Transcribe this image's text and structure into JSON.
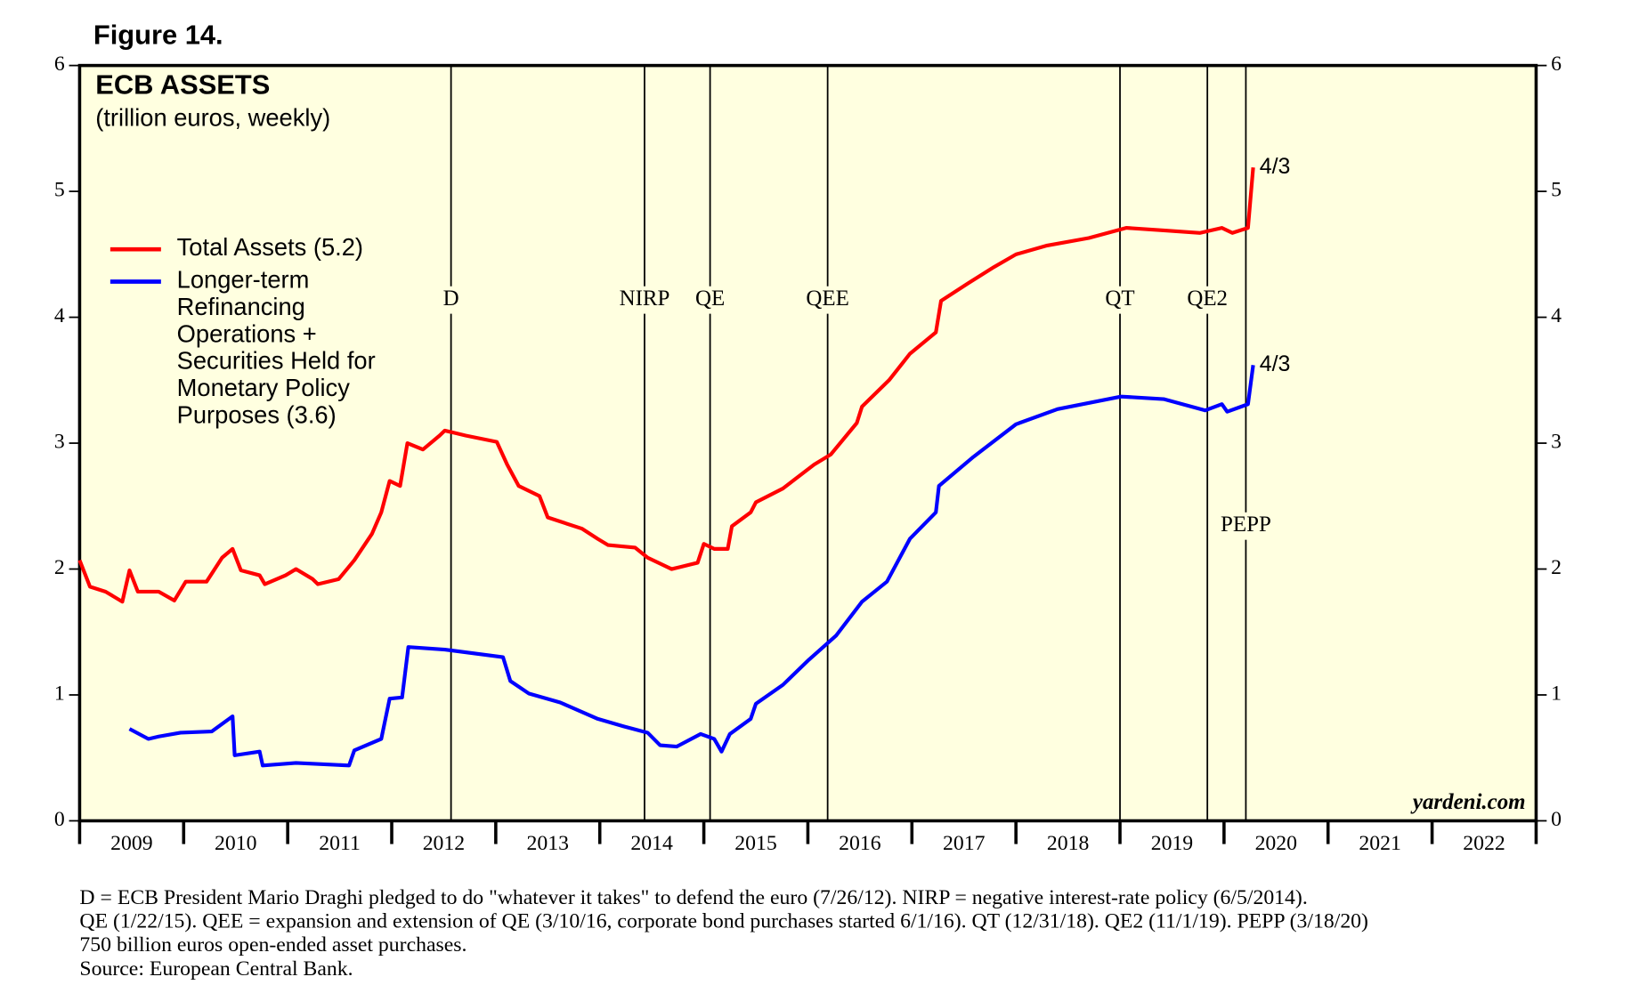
{
  "chart_data": {
    "type": "line",
    "figure": "Figure 14.",
    "title": "ECB ASSETS",
    "subtitle": "(trillion euros, weekly)",
    "watermark": "yardeni.com",
    "xlim": [
      2009,
      2023
    ],
    "x_boundaries": [
      2009,
      2010,
      2011,
      2012,
      2013,
      2014,
      2015,
      2016,
      2017,
      2018,
      2019,
      2020,
      2021,
      2022,
      2023
    ],
    "xticks": [
      {
        "value": 2009.5,
        "label": "2009"
      },
      {
        "value": 2010.5,
        "label": "2010"
      },
      {
        "value": 2011.5,
        "label": "2011"
      },
      {
        "value": 2012.5,
        "label": "2012"
      },
      {
        "value": 2013.5,
        "label": "2013"
      },
      {
        "value": 2014.5,
        "label": "2014"
      },
      {
        "value": 2015.5,
        "label": "2015"
      },
      {
        "value": 2016.5,
        "label": "2016"
      },
      {
        "value": 2017.5,
        "label": "2017"
      },
      {
        "value": 2018.5,
        "label": "2018"
      },
      {
        "value": 2019.5,
        "label": "2019"
      },
      {
        "value": 2020.5,
        "label": "2020"
      },
      {
        "value": 2021.5,
        "label": "2021"
      },
      {
        "value": 2022.5,
        "label": "2022"
      }
    ],
    "ylim": [
      0,
      6
    ],
    "yticks": [
      0,
      1,
      2,
      3,
      4,
      5,
      6
    ],
    "y2lim": [
      0,
      6
    ],
    "y2ticks": [
      0,
      1,
      2,
      3,
      4,
      5,
      6
    ],
    "background": "#ffffe0",
    "events": [
      {
        "label": "D",
        "x": 2012.57
      },
      {
        "label": "NIRP",
        "x": 2014.43
      },
      {
        "label": "QE",
        "x": 2015.06
      },
      {
        "label": "QEE",
        "x": 2016.19
      },
      {
        "label": "QT",
        "x": 2019.0
      },
      {
        "label": "QE2",
        "x": 2019.84
      },
      {
        "label": "PEPP",
        "x": 2020.21,
        "low": true
      }
    ],
    "series": [
      {
        "name": "Total Assets (5.2)",
        "color": "#ff0000",
        "end_label": "4/3",
        "x": [
          2009.0,
          2009.1,
          2009.25,
          2009.41,
          2009.48,
          2009.56,
          2009.76,
          2009.91,
          2010.02,
          2010.22,
          2010.37,
          2010.47,
          2010.55,
          2010.73,
          2010.78,
          2010.98,
          2011.08,
          2011.24,
          2011.29,
          2011.49,
          2011.64,
          2011.81,
          2011.9,
          2011.98,
          2012.08,
          2012.15,
          2012.3,
          2012.46,
          2012.51,
          2012.71,
          2013.01,
          2013.11,
          2013.22,
          2013.42,
          2013.5,
          2013.83,
          2013.98,
          2014.08,
          2014.34,
          2014.46,
          2014.69,
          2014.94,
          2015.0,
          2015.1,
          2015.23,
          2015.27,
          2015.45,
          2015.5,
          2015.76,
          2016.06,
          2016.22,
          2016.47,
          2016.52,
          2016.78,
          2016.98,
          2017.23,
          2017.28,
          2017.54,
          2017.79,
          2018.0,
          2018.3,
          2018.7,
          2019.06,
          2019.42,
          2019.77,
          2019.98,
          2020.08,
          2020.23,
          2020.28
        ],
        "values": [
          2.07,
          1.86,
          1.82,
          1.74,
          1.99,
          1.82,
          1.82,
          1.75,
          1.9,
          1.9,
          2.09,
          2.16,
          1.99,
          1.95,
          1.88,
          1.95,
          2.0,
          1.92,
          1.88,
          1.92,
          2.07,
          2.28,
          2.45,
          2.7,
          2.66,
          3.0,
          2.95,
          3.06,
          3.1,
          3.06,
          3.01,
          2.83,
          2.66,
          2.58,
          2.41,
          2.32,
          2.24,
          2.19,
          2.17,
          2.09,
          2.0,
          2.05,
          2.2,
          2.16,
          2.16,
          2.34,
          2.45,
          2.53,
          2.64,
          2.83,
          2.91,
          3.16,
          3.29,
          3.5,
          3.71,
          3.88,
          4.13,
          4.27,
          4.4,
          4.5,
          4.57,
          4.63,
          4.71,
          4.69,
          4.67,
          4.71,
          4.67,
          4.71,
          5.19
        ]
      },
      {
        "name": "Longer-term Refinancing Operations + Securities Held for Monetary Policy Purposes (3.6)",
        "color": "#0000ff",
        "end_label": "4/3",
        "x": [
          2009.48,
          2009.66,
          2009.76,
          2009.97,
          2010.27,
          2010.47,
          2010.49,
          2010.73,
          2010.76,
          2011.08,
          2011.59,
          2011.64,
          2011.9,
          2011.98,
          2012.1,
          2012.16,
          2012.51,
          2013.07,
          2013.14,
          2013.32,
          2013.62,
          2013.98,
          2014.23,
          2014.46,
          2014.58,
          2014.74,
          2014.97,
          2015.1,
          2015.17,
          2015.25,
          2015.45,
          2015.5,
          2015.76,
          2016.01,
          2016.27,
          2016.52,
          2016.76,
          2016.98,
          2017.23,
          2017.26,
          2017.59,
          2018.0,
          2018.4,
          2019.01,
          2019.42,
          2019.82,
          2019.98,
          2020.03,
          2020.23,
          2020.28
        ],
        "values": [
          0.73,
          0.65,
          0.67,
          0.7,
          0.71,
          0.83,
          0.52,
          0.55,
          0.44,
          0.46,
          0.44,
          0.56,
          0.65,
          0.97,
          0.98,
          1.38,
          1.36,
          1.3,
          1.11,
          1.01,
          0.94,
          0.81,
          0.75,
          0.7,
          0.6,
          0.59,
          0.69,
          0.65,
          0.55,
          0.69,
          0.81,
          0.93,
          1.08,
          1.28,
          1.47,
          1.74,
          1.9,
          2.24,
          2.45,
          2.66,
          2.89,
          3.15,
          3.27,
          3.37,
          3.35,
          3.26,
          3.31,
          3.25,
          3.31,
          3.62
        ]
      }
    ],
    "notes": [
      "D = ECB President Mario Draghi pledged to do \"whatever it takes\" to defend the euro (7/26/12). NIRP = negative interest-rate policy (6/5/2014).",
      "QE (1/22/15). QEE = expansion and extension of QE (3/10/16, corporate bond purchases started 6/1/16). QT (12/31/18). QE2 (11/1/19). PEPP (3/18/20)",
      "750 billion euros open-ended asset purchases.",
      "Source: European Central Bank."
    ]
  }
}
